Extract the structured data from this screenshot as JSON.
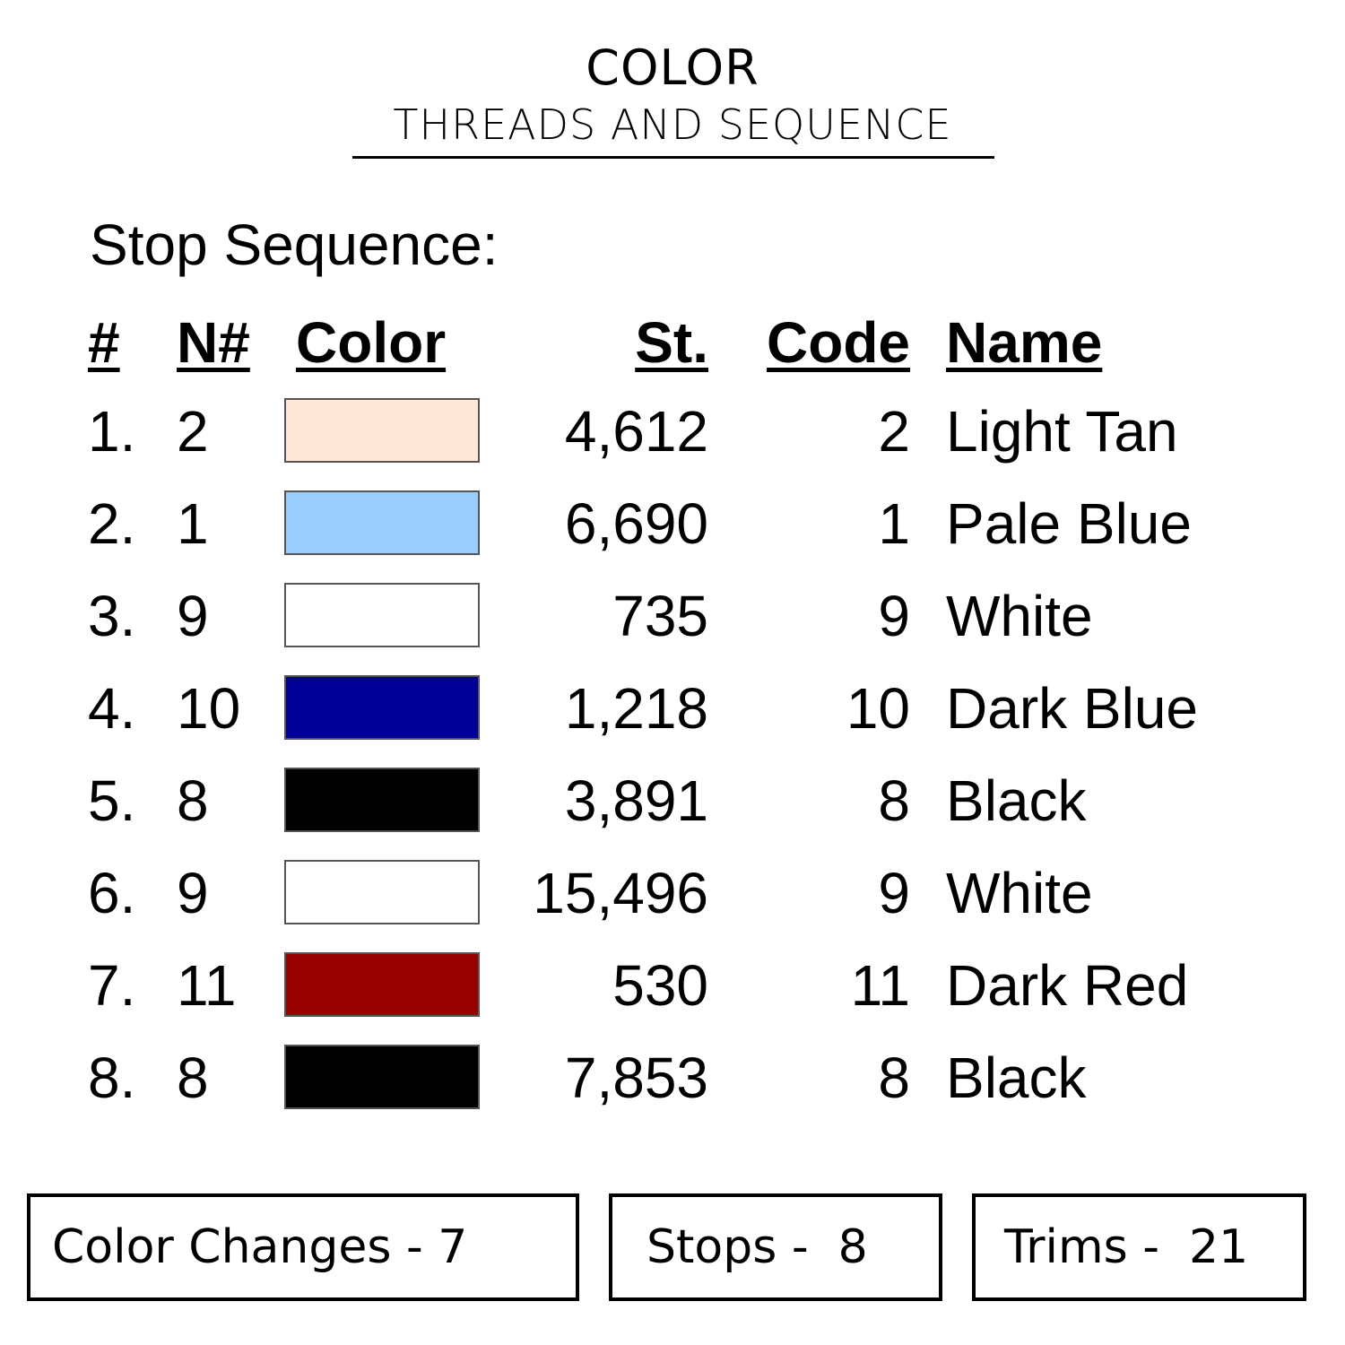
{
  "header": {
    "title": "COLOR",
    "subtitle": "THREADS AND SEQUENCE"
  },
  "section_label": "Stop Sequence:",
  "columns": [
    "#",
    "N#",
    "Color",
    "St.",
    "Code",
    "Name"
  ],
  "rows": [
    {
      "num": "1.",
      "n": "2",
      "color": "#FFE8D8",
      "stitches": "4,612",
      "code": "2",
      "name": "Light Tan"
    },
    {
      "num": "2.",
      "n": "1",
      "color": "#99CCFF",
      "stitches": "6,690",
      "code": "1",
      "name": "Pale Blue"
    },
    {
      "num": "3.",
      "n": "9",
      "color": "#FFFFFF",
      "stitches": "735",
      "code": "9",
      "name": "White"
    },
    {
      "num": "4.",
      "n": "10",
      "color": "#000099",
      "stitches": "1,218",
      "code": "10",
      "name": "Dark Blue"
    },
    {
      "num": "5.",
      "n": "8",
      "color": "#000000",
      "stitches": "3,891",
      "code": "8",
      "name": "Black"
    },
    {
      "num": "6.",
      "n": "9",
      "color": "#FFFFFF",
      "stitches": "15,496",
      "code": "9",
      "name": "White"
    },
    {
      "num": "7.",
      "n": "11",
      "color": "#990000",
      "stitches": "530",
      "code": "11",
      "name": "Dark Red"
    },
    {
      "num": "8.",
      "n": "8",
      "color": "#000000",
      "stitches": "7,853",
      "code": "8",
      "name": "Black"
    }
  ],
  "summary": {
    "color_changes": "Color Changes - 7",
    "stops": "Stops -  8",
    "trims": "Trims -  21"
  }
}
